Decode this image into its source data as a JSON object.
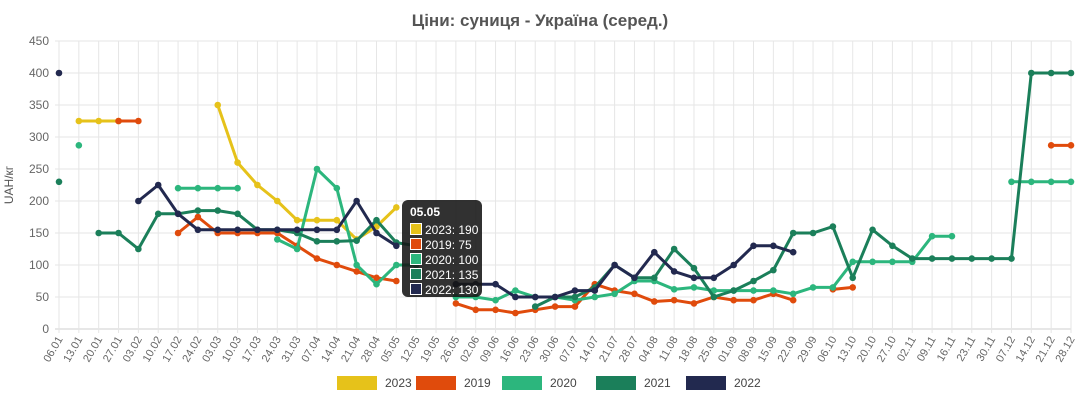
{
  "chart_data": {
    "type": "line",
    "title": "Ціни: суниця - Україна (серед.)",
    "ylabel": "UAH/кг",
    "xlabel": "",
    "ylim": [
      0,
      450
    ],
    "yticks": [
      0,
      50,
      100,
      150,
      200,
      250,
      300,
      350,
      400,
      450
    ],
    "categories": [
      "06.01",
      "13.01",
      "20.01",
      "27.01",
      "03.02",
      "10.02",
      "17.02",
      "24.02",
      "03.03",
      "10.03",
      "17.03",
      "24.03",
      "31.03",
      "07.04",
      "14.04",
      "21.04",
      "28.04",
      "05.05",
      "12.05",
      "19.05",
      "26.05",
      "02.06",
      "09.06",
      "16.06",
      "23.06",
      "30.06",
      "07.07",
      "14.07",
      "21.07",
      "28.07",
      "04.08",
      "11.08",
      "18.08",
      "25.08",
      "01.09",
      "08.09",
      "15.09",
      "22.09",
      "29.09",
      "06.10",
      "13.10",
      "20.10",
      "27.10",
      "02.11",
      "09.11",
      "16.11",
      "23.11",
      "30.11",
      "07.12",
      "14.12",
      "21.12",
      "28.12"
    ],
    "grid": true,
    "legend_position": "bottom",
    "series": [
      {
        "name": "2023",
        "color": "#e6c21a",
        "values": [
          null,
          325,
          325,
          325,
          null,
          null,
          null,
          null,
          350,
          260,
          225,
          200,
          170,
          170,
          170,
          140,
          160,
          190,
          null,
          null,
          null,
          null,
          null,
          null,
          null,
          null,
          null,
          null,
          null,
          null,
          null,
          null,
          null,
          null,
          null,
          null,
          null,
          null,
          null,
          null,
          null,
          null,
          null,
          null,
          null,
          null,
          null,
          null,
          null,
          null,
          null,
          null
        ]
      },
      {
        "name": "2019",
        "color": "#e04b0c",
        "values": [
          null,
          null,
          null,
          325,
          325,
          null,
          150,
          175,
          150,
          150,
          150,
          150,
          130,
          110,
          100,
          90,
          80,
          75,
          null,
          null,
          40,
          30,
          30,
          25,
          30,
          35,
          35,
          70,
          60,
          55,
          43,
          45,
          40,
          50,
          45,
          45,
          55,
          45,
          null,
          62,
          65,
          null,
          null,
          null,
          null,
          null,
          null,
          null,
          null,
          null,
          287,
          287
        ]
      },
      {
        "name": "2020",
        "color": "#2cb67d",
        "values": [
          null,
          287,
          null,
          null,
          null,
          null,
          220,
          220,
          220,
          220,
          null,
          140,
          125,
          250,
          220,
          100,
          70,
          100,
          100,
          null,
          50,
          50,
          45,
          60,
          50,
          50,
          45,
          50,
          55,
          75,
          75,
          62,
          65,
          60,
          60,
          60,
          60,
          55,
          65,
          65,
          105,
          105,
          105,
          105,
          145,
          145,
          null,
          null,
          230,
          230,
          230,
          230
        ]
      },
      {
        "name": "2021",
        "color": "#1b7f5a",
        "values": [
          230,
          null,
          150,
          150,
          125,
          180,
          180,
          185,
          185,
          180,
          155,
          155,
          150,
          137,
          137,
          138,
          170,
          135,
          130,
          null,
          null,
          null,
          null,
          null,
          35,
          50,
          50,
          65,
          100,
          80,
          80,
          125,
          95,
          50,
          60,
          75,
          92,
          150,
          150,
          160,
          80,
          155,
          130,
          110,
          110,
          110,
          110,
          110,
          110,
          400,
          400,
          400
        ]
      },
      {
        "name": "2022",
        "color": "#22294f",
        "values": [
          400,
          null,
          null,
          null,
          200,
          225,
          180,
          155,
          155,
          155,
          155,
          155,
          155,
          155,
          155,
          200,
          150,
          130,
          null,
          null,
          70,
          70,
          70,
          50,
          50,
          50,
          60,
          60,
          100,
          80,
          120,
          90,
          80,
          80,
          100,
          130,
          130,
          120,
          null,
          null,
          null,
          null,
          null,
          null,
          null,
          null,
          null,
          null,
          null,
          null,
          null,
          null
        ]
      }
    ],
    "tooltip": {
      "title": "05.05",
      "rows": [
        {
          "series": "2023",
          "label": "2023: 190",
          "color": "#e6c21a"
        },
        {
          "series": "2019",
          "label": "2019: 75",
          "color": "#e04b0c"
        },
        {
          "series": "2020",
          "label": "2020: 100",
          "color": "#2cb67d"
        },
        {
          "series": "2021",
          "label": "2021: 135",
          "color": "#1b7f5a"
        },
        {
          "series": "2022",
          "label": "2022: 130",
          "color": "#22294f"
        }
      ]
    }
  }
}
